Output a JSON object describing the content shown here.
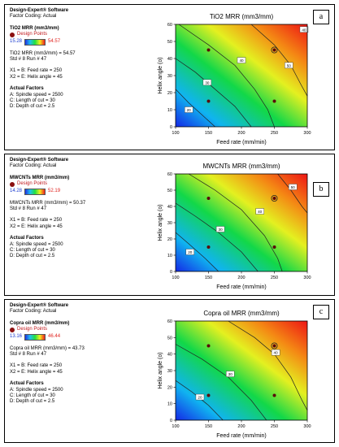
{
  "panels": [
    {
      "letter": "a",
      "software": "Design-Expert® Software",
      "coding": "Factor Coding: Actual",
      "response": "TiO2 MRR (mm3/mm)",
      "design_points_label": "Design Points",
      "scale_low": "15.28",
      "scale_high": "54.57",
      "prediction": "TiO2 MRR (mm3/mm) = 54.57",
      "std": "Std # 8 Run # 47",
      "x1": "X1 = B: Feed rate = 250",
      "x2": "X2 = E: Helix angle = 45",
      "actual_factors_label": "Actual Factors",
      "factor_a": "A: Spindle speed = 2500",
      "factor_c": "C: Length of cut = 30",
      "factor_d": "D: Depth of cut = 2.5"
    },
    {
      "letter": "b",
      "software": "Design-Expert® Software",
      "coding": "Factor Coding: Actual",
      "response": "MWCNTs MRR (mm3/mm)",
      "design_points_label": "Design Points",
      "scale_low": "14.28",
      "scale_high": "52.19",
      "prediction": "MWCNTs MRR (mm3/mm) = 50.37",
      "std": "Std # 8 Run # 47",
      "x1": "X1 = B: Feed rate = 250",
      "x2": "X2 = E: Helix angle = 45",
      "actual_factors_label": "Actual Factors",
      "factor_a": "A: Spindle speed = 2500",
      "factor_c": "C: Length of cut = 30",
      "factor_d": "D: Depth of cut = 2.5"
    },
    {
      "letter": "c",
      "software": "Design-Expert® Software",
      "coding": "Factor Coding: Actual",
      "response": "Copra oil MRR (mm3/mm)",
      "design_points_label": "Design Points",
      "scale_low": "13.16",
      "scale_high": "46.44",
      "prediction": "Copra oil MRR (mm3/mm) = 43.73",
      "std": "Std # 8 Run # 47",
      "x1": "X1 = B: Feed rate = 250",
      "x2": "X2 = E: Helix angle = 45",
      "actual_factors_label": "Actual Factors",
      "factor_a": "A: Spindle speed = 2500",
      "factor_c": "C: Length of cut = 30",
      "factor_d": "D: Depth of cut = 2.5"
    }
  ],
  "chart_data": [
    {
      "type": "contour",
      "title": "TiO2 MRR (mm3/mm)",
      "xlabel": "Feed rate (mm/min)",
      "ylabel": "Helix angle (o)",
      "xlim": [
        100,
        300
      ],
      "ylim": [
        0,
        60
      ],
      "x_ticks": [
        100,
        150,
        200,
        250,
        300
      ],
      "y_ticks": [
        0,
        10,
        20,
        30,
        40,
        50,
        60
      ],
      "scale_min": 15.28,
      "scale_max": 54.57,
      "contours": [
        {
          "level": 20,
          "points": [
            [
              100,
              22
            ],
            [
              120,
              14
            ],
            [
              140,
              7
            ],
            [
              160,
              0
            ]
          ]
        },
        {
          "level": 30,
          "points": [
            [
              100,
              40
            ],
            [
              130,
              32
            ],
            [
              160,
              22
            ],
            [
              190,
              12
            ],
            [
              215,
              0
            ]
          ]
        },
        {
          "level": 40,
          "points": [
            [
              105,
              60
            ],
            [
              150,
              48
            ],
            [
              190,
              36
            ],
            [
              220,
              22
            ],
            [
              240,
              10
            ],
            [
              250,
              0
            ]
          ]
        },
        {
          "level": 50,
          "points": [
            [
              215,
              60
            ],
            [
              250,
              48
            ],
            [
              275,
              36
            ],
            [
              290,
              25
            ],
            [
              300,
              18
            ]
          ]
        }
      ],
      "contour_labels": [
        {
          "level": "20",
          "x": 120,
          "y": 10
        },
        {
          "level": "30",
          "x": 148,
          "y": 26
        },
        {
          "level": "40",
          "x": 200,
          "y": 39
        },
        {
          "level": "50",
          "x": 272,
          "y": 36
        },
        {
          "level": "40",
          "x": 295,
          "y": 57
        }
      ],
      "design_points": [
        [
          150,
          45
        ],
        [
          250,
          45
        ],
        [
          150,
          15
        ],
        [
          250,
          15
        ]
      ],
      "highlight_point": [
        250,
        45
      ]
    },
    {
      "type": "contour",
      "title": "MWCNTs MRR (mm3/mm)",
      "xlabel": "Feed rate (mm/min)",
      "ylabel": "Helix angle (o)",
      "xlim": [
        100,
        300
      ],
      "ylim": [
        0,
        60
      ],
      "x_ticks": [
        100,
        150,
        200,
        250,
        300
      ],
      "y_ticks": [
        0,
        10,
        20,
        30,
        40,
        50,
        60
      ],
      "scale_min": 14.28,
      "scale_max": 52.19,
      "contours": [
        {
          "level": 20,
          "points": [
            [
              100,
              24
            ],
            [
              120,
              17
            ],
            [
              145,
              8
            ],
            [
              165,
              0
            ]
          ]
        },
        {
          "level": 30,
          "points": [
            [
              100,
              42
            ],
            [
              130,
              34
            ],
            [
              165,
              24
            ],
            [
              200,
              12
            ],
            [
              225,
              0
            ]
          ]
        },
        {
          "level": 40,
          "points": [
            [
              120,
              60
            ],
            [
              160,
              50
            ],
            [
              200,
              38
            ],
            [
              235,
              22
            ],
            [
              255,
              8
            ],
            [
              262,
              0
            ]
          ]
        },
        {
          "level": 50,
          "points": [
            [
              255,
              60
            ],
            [
              275,
              50
            ],
            [
              292,
              40
            ],
            [
              300,
              36
            ]
          ]
        }
      ],
      "contour_labels": [
        {
          "level": "20",
          "x": 122,
          "y": 12
        },
        {
          "level": "30",
          "x": 168,
          "y": 26
        },
        {
          "level": "40",
          "x": 228,
          "y": 37
        },
        {
          "level": "50",
          "x": 278,
          "y": 52
        }
      ],
      "design_points": [
        [
          150,
          45
        ],
        [
          250,
          45
        ],
        [
          150,
          15
        ],
        [
          250,
          15
        ]
      ],
      "highlight_point": [
        250,
        45
      ]
    },
    {
      "type": "contour",
      "title": "Copra oil  MRR (mm3/mm)",
      "xlabel": "Feed rate (mm/min)",
      "ylabel": "Helix angle (o)",
      "xlim": [
        100,
        300
      ],
      "ylim": [
        0,
        60
      ],
      "x_ticks": [
        100,
        150,
        200,
        250,
        300
      ],
      "y_ticks": [
        0,
        10,
        20,
        30,
        40,
        50,
        60
      ],
      "scale_min": 13.16,
      "scale_max": 46.44,
      "contours": [
        {
          "level": 20,
          "points": [
            [
              100,
              24
            ],
            [
              125,
              17
            ],
            [
              150,
              9
            ],
            [
              172,
              0
            ]
          ]
        },
        {
          "level": 30,
          "points": [
            [
              100,
              46
            ],
            [
              140,
              37
            ],
            [
              180,
              26
            ],
            [
              215,
              12
            ],
            [
              238,
              0
            ]
          ]
        },
        {
          "level": 40,
          "points": [
            [
              180,
              60
            ],
            [
              220,
              50
            ],
            [
              250,
              40
            ],
            [
              275,
              26
            ],
            [
              292,
              12
            ],
            [
              300,
              6
            ]
          ]
        }
      ],
      "contour_labels": [
        {
          "level": "20",
          "x": 137,
          "y": 14
        },
        {
          "level": "30",
          "x": 183,
          "y": 28
        },
        {
          "level": "40",
          "x": 252,
          "y": 41
        }
      ],
      "design_points": [
        [
          150,
          45
        ],
        [
          250,
          45
        ],
        [
          150,
          15
        ],
        [
          250,
          15
        ]
      ],
      "highlight_point": [
        250,
        45
      ]
    }
  ]
}
